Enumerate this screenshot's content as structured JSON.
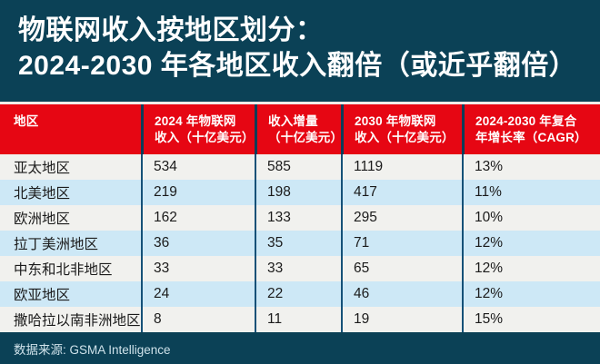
{
  "title": {
    "line1": "物联网收入按地区划分：",
    "line2": "2024-2030 年各地区收入翻倍（或近乎翻倍）"
  },
  "header": {
    "cells": [
      {
        "lines": [
          "地区",
          ""
        ]
      },
      {
        "lines": [
          "2024 年物联网",
          "收入（十亿美元）"
        ]
      },
      {
        "lines": [
          "收入增量",
          "（十亿美元）"
        ]
      },
      {
        "lines": [
          "2030 年物联网",
          "收入（十亿美元）"
        ]
      },
      {
        "lines": [
          "2024-2030 年复合",
          "年增长率（CAGR）"
        ]
      }
    ]
  },
  "chart_data": {
    "type": "table",
    "title": "物联网收入按地区划分：2024-2030 年各地区收入翻倍（或近乎翻倍）",
    "columns": [
      "地区",
      "2024 年物联网收入（十亿美元）",
      "收入增量（十亿美元）",
      "2030 年物联网收入（十亿美元）",
      "2024-2030 年复合年增长率（CAGR）"
    ],
    "rows": [
      [
        "亚太地区",
        534,
        585,
        1119,
        "13%"
      ],
      [
        "北美地区",
        219,
        198,
        417,
        "11%"
      ],
      [
        "欧洲地区",
        162,
        133,
        295,
        "10%"
      ],
      [
        "拉丁美洲地区",
        36,
        35,
        71,
        "12%"
      ],
      [
        "中东和北非地区",
        33,
        33,
        65,
        "12%"
      ],
      [
        "欧亚地区",
        24,
        22,
        46,
        "12%"
      ],
      [
        "撒哈拉以南非洲地区",
        8,
        11,
        19,
        "15%"
      ]
    ],
    "source": "数据来源: GSMA Intelligence"
  },
  "footer": {
    "source": "数据来源: GSMA Intelligence"
  },
  "colors": {
    "background_teal": "#0b4156",
    "header_red": "#e60613",
    "row_white": "#f1f1ee",
    "row_blue": "#cde8f6",
    "separator_navy": "#155178",
    "title_text": "#ffffff",
    "footer_text": "#cfe2ea"
  }
}
